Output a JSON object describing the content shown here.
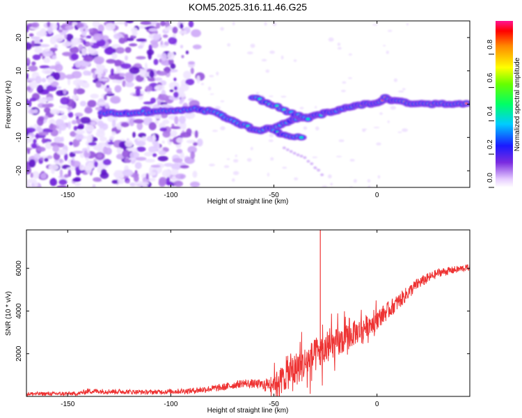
{
  "title": "KOM5.2025.316.11.46.G25",
  "chart_data": [
    {
      "type": "heatmap",
      "name": "spectrogram",
      "xlabel": "Height of straight line (km)",
      "ylabel": "Frequency (Hz)",
      "xlim": [
        -170,
        45
      ],
      "ylim": [
        -25,
        25
      ],
      "xticks": [
        -150,
        -100,
        -50,
        0
      ],
      "yticks": [
        -20,
        -10,
        0,
        10,
        20
      ],
      "colorbar": {
        "label": "Normalized spectral amplitude",
        "range": [
          0,
          1
        ],
        "ticks": [
          0.0,
          0.2,
          0.4,
          0.6,
          0.8
        ]
      },
      "ridge_tracks": [
        {
          "name": "main-branch",
          "points": [
            [
              -133,
              -2.5
            ],
            [
              -125,
              -2.8
            ],
            [
              -118,
              -2.8
            ],
            [
              -108,
              -2.2
            ],
            [
              -98,
              -1.8
            ],
            [
              -88,
              -1.5
            ],
            [
              -80,
              -2.2
            ],
            [
              -72,
              -4.5
            ],
            [
              -64,
              -6.5
            ],
            [
              -58,
              -8
            ],
            [
              -50,
              -7
            ],
            [
              -42,
              -5
            ],
            [
              -36,
              -4
            ],
            [
              -30,
              -3.5
            ],
            [
              -24,
              -2.5
            ],
            [
              -18,
              -1.5
            ],
            [
              -12,
              -0.5
            ],
            [
              -6,
              0
            ],
            [
              0,
              0.5
            ],
            [
              4,
              1.8
            ],
            [
              10,
              0.8
            ],
            [
              20,
              0
            ],
            [
              30,
              0
            ],
            [
              45,
              0
            ]
          ]
        },
        {
          "name": "upper-branch",
          "points": [
            [
              -60,
              2
            ],
            [
              -52,
              0.2
            ],
            [
              -45,
              -1.8
            ],
            [
              -38,
              -3.5
            ],
            [
              -32,
              -4.5
            ]
          ]
        },
        {
          "name": "lower-branch",
          "points": [
            [
              -50,
              -8
            ],
            [
              -45,
              -9.2
            ],
            [
              -40,
              -9.8
            ],
            [
              -35,
              -10
            ]
          ]
        },
        {
          "name": "faint-tail",
          "points": [
            [
              -45,
              -13
            ],
            [
              -35,
              -16
            ],
            [
              -25,
              -22
            ]
          ]
        }
      ]
    },
    {
      "type": "line",
      "name": "snr",
      "xlabel": "Height of straight line (km)",
      "ylabel": "SNR (10 * v/v)",
      "xlim": [
        -170,
        45
      ],
      "ylim": [
        0,
        7800
      ],
      "xticks": [
        -150,
        -100,
        -50,
        0
      ],
      "yticks": [
        2000,
        4000,
        6000
      ],
      "color": "#ee3333",
      "series": [
        {
          "name": "SNR",
          "envelope": {
            "x": [
              -170,
              -145,
              -140,
              -110,
              -90,
              -75,
              -65,
              -55,
              -50,
              -45,
              -40,
              -35,
              -30,
              -20,
              -10,
              0,
              10,
              20,
              30,
              45
            ],
            "y": [
              120,
              130,
              250,
              200,
              260,
              420,
              620,
              550,
              650,
              900,
              1250,
              1550,
              1900,
              2450,
              3000,
              3600,
              4400,
              5300,
              5800,
              6050
            ],
            "amp": [
              90,
              90,
              130,
              100,
              140,
              170,
              190,
              230,
              420,
              650,
              800,
              800,
              800,
              700,
              560,
              460,
              380,
              280,
              200,
              150
            ]
          }
        },
        {
          "name": "spike",
          "points": [
            [
              -27.5,
              7800
            ]
          ]
        }
      ]
    }
  ]
}
